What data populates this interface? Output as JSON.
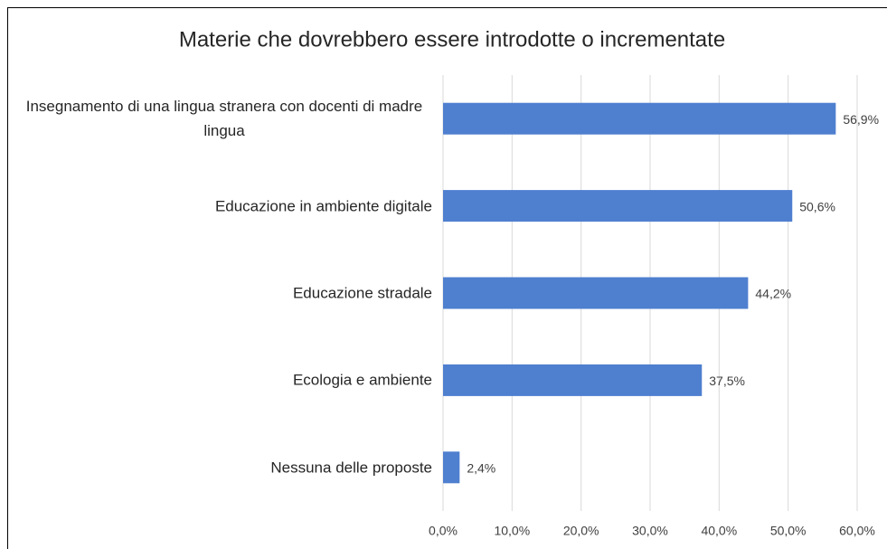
{
  "chart_data": {
    "type": "bar",
    "orientation": "horizontal",
    "title": "Materie che dovrebbero essere introdotte o incrementate",
    "categories": [
      "Insegnamento di una lingua stranera con docenti di madre lingua",
      "Educazione in ambiente digitale",
      "Educazione stradale",
      "Ecologia e ambiente",
      "Nessuna delle proposte"
    ],
    "values": [
      56.9,
      50.6,
      44.2,
      37.5,
      2.4
    ],
    "value_labels": [
      "56,9%",
      "50,6%",
      "44,2%",
      "37,5%",
      "2,4%"
    ],
    "color": "#4f7fcf",
    "xlim": [
      0,
      60
    ],
    "xticks": [
      {
        "value": 0,
        "label": "0,0%"
      },
      {
        "value": 10,
        "label": "10,0%"
      },
      {
        "value": 20,
        "label": "20,0%"
      },
      {
        "value": 30,
        "label": "30,0%"
      },
      {
        "value": 40,
        "label": "40,0%"
      },
      {
        "value": 50,
        "label": "50,0%"
      },
      {
        "value": 60,
        "label": "60,0%"
      }
    ],
    "grid": true
  }
}
